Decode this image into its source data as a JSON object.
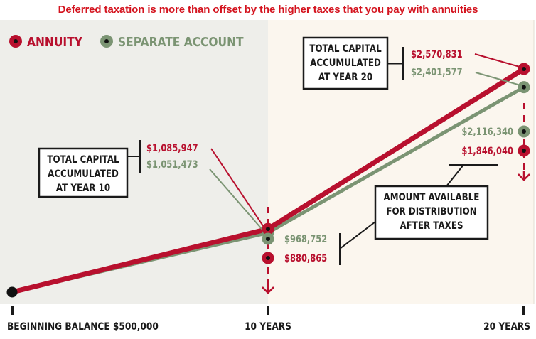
{
  "title": "Deferred taxation is more than offset by the higher taxes that you pay with annuities",
  "colors": {
    "annuity": "#b8102e",
    "separate": "#7b9473",
    "left_panel": "#eeeeea",
    "right_panel": "#fbf6ee",
    "text": "#1a1a1a",
    "title": "#d4141f"
  },
  "legend": [
    {
      "label": "ANNUITY",
      "color": "#b8102e"
    },
    {
      "label": "SEPARATE ACCOUNT",
      "color": "#7b9473"
    }
  ],
  "callouts": {
    "year10": [
      "TOTAL CAPITAL",
      "ACCUMULATED",
      "AT YEAR 10"
    ],
    "year20": [
      "TOTAL CAPITAL",
      "ACCUMULATED",
      "AT YEAR 20"
    ],
    "after_tax": [
      "AMOUNT AVAILABLE",
      "FOR DISTRIBUTION",
      "AFTER TAXES"
    ]
  },
  "chart_data": {
    "type": "line",
    "x": [
      0,
      10,
      20
    ],
    "x_tick_labels": [
      "BEGINNING BALANCE $500,000",
      "10 YEARS",
      "20 YEARS"
    ],
    "series": [
      {
        "name": "ANNUITY",
        "values": [
          500000,
          1085947,
          2570831
        ],
        "labels": [
          "",
          "$1,085,947",
          "$2,570,831"
        ]
      },
      {
        "name": "SEPARATE ACCOUNT",
        "values": [
          500000,
          1051473,
          2401577
        ],
        "labels": [
          "",
          "$1,051,473",
          "$2,401,577"
        ]
      }
    ],
    "after_tax": {
      "year10": {
        "separate": 968752,
        "annuity": 880865,
        "separate_label": "$968,752",
        "annuity_label": "$880,865"
      },
      "year20": {
        "separate": 2116340,
        "annuity": 1846040,
        "separate_label": "$2,116,340",
        "annuity_label": "$1,846,040"
      }
    },
    "ylim": [
      500000,
      2570831
    ],
    "grid": false,
    "legend_position": "top-left"
  }
}
